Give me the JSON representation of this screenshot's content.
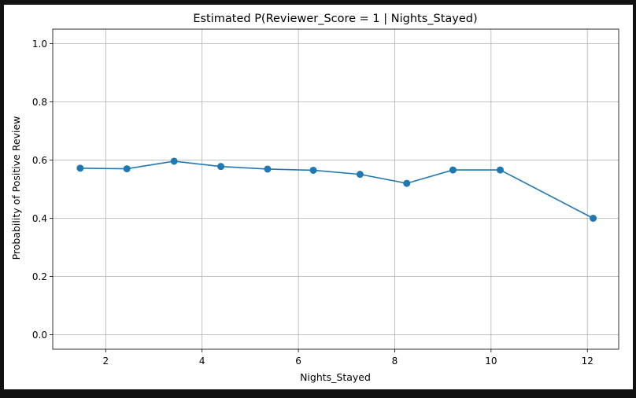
{
  "chart_data": {
    "type": "line",
    "title": "Estimated P(Reviewer_Score = 1 | Nights_Stayed)",
    "xlabel": "Nights_Stayed",
    "ylabel": "Probability of Positive Review",
    "xlim": [
      0.9,
      12.65
    ],
    "ylim": [
      -0.05,
      1.05
    ],
    "xticks": [
      2,
      4,
      6,
      8,
      10,
      12
    ],
    "yticks": [
      0.0,
      0.2,
      0.4,
      0.6,
      0.8,
      1.0
    ],
    "grid": true,
    "series": [
      {
        "color": "#1f77b4",
        "x": [
          1.47,
          2.44,
          3.42,
          4.39,
          5.36,
          6.31,
          7.28,
          8.25,
          9.21,
          10.19,
          12.12
        ],
        "y": [
          0.572,
          0.57,
          0.596,
          0.578,
          0.569,
          0.565,
          0.551,
          0.52,
          0.566,
          0.566,
          0.4
        ]
      }
    ]
  }
}
